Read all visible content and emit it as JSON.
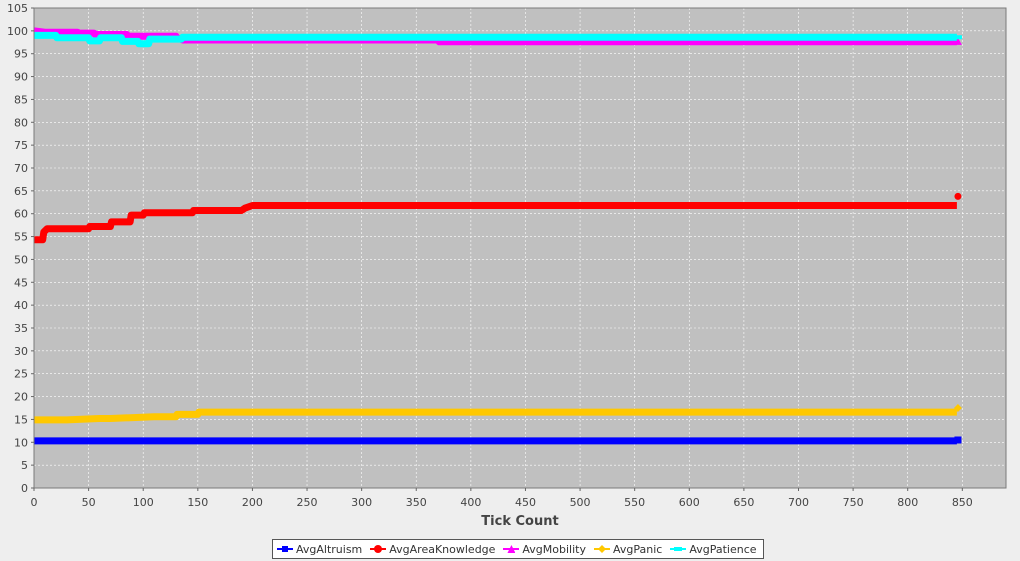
{
  "chart_data": {
    "type": "line",
    "xlabel": "Tick Count",
    "ylabel": "",
    "xlim": [
      0,
      890
    ],
    "ylim": [
      0,
      105
    ],
    "xticks": [
      0,
      50,
      100,
      150,
      200,
      250,
      300,
      350,
      400,
      450,
      500,
      550,
      600,
      650,
      700,
      750,
      800,
      850
    ],
    "yticks": [
      0,
      5,
      10,
      15,
      20,
      25,
      30,
      35,
      40,
      45,
      50,
      55,
      60,
      65,
      70,
      75,
      80,
      85,
      90,
      95,
      100,
      105
    ],
    "grid": true,
    "legend_position": "bottom",
    "background_color": "#c0c0c0",
    "series": [
      {
        "name": "AvgAltruism",
        "color": "#0000ff",
        "marker": "square",
        "x": [
          0,
          845
        ],
        "y": [
          10.3,
          10.3
        ],
        "end_point": [
          846,
          10.5
        ]
      },
      {
        "name": "AvgAreaKnowledge",
        "color": "#ff0000",
        "marker": "circle",
        "x": [
          0,
          8,
          9,
          12,
          50,
          51,
          70,
          71,
          88,
          89,
          100,
          101,
          145,
          146,
          190,
          193,
          200,
          845
        ],
        "y": [
          54.3,
          54.3,
          56,
          56.7,
          56.7,
          57.2,
          57.2,
          58.2,
          58.2,
          59.7,
          59.7,
          60.2,
          60.2,
          60.7,
          60.7,
          61.2,
          61.8,
          61.8
        ],
        "end_point": [
          846,
          63.8
        ]
      },
      {
        "name": "AvgMobility",
        "color": "#ff00ff",
        "marker": "triangle",
        "x": [
          0,
          10,
          40,
          41,
          55,
          56,
          85,
          86,
          130,
          131,
          135,
          136,
          370,
          371,
          845
        ],
        "y": [
          100,
          99.7,
          99.7,
          99.5,
          99.5,
          99.2,
          99.2,
          98.8,
          98.8,
          98.3,
          98.3,
          98,
          98,
          97.6,
          97.6
        ],
        "end_point": [
          846,
          97.6
        ]
      },
      {
        "name": "AvgPanic",
        "color": "#ffc800",
        "marker": "diamond",
        "x": [
          0,
          30,
          60,
          70,
          110,
          130,
          131,
          150,
          151,
          845
        ],
        "y": [
          14.9,
          14.9,
          15.2,
          15.2,
          15.6,
          15.6,
          16.1,
          16.1,
          16.6,
          16.6
        ],
        "end_point": [
          846,
          17.5
        ]
      },
      {
        "name": "AvgPatience",
        "color": "#00ffff",
        "marker": "dash",
        "x": [
          0,
          20,
          21,
          50,
          51,
          60,
          61,
          80,
          81,
          95,
          96,
          105,
          106,
          135,
          136,
          845
        ],
        "y": [
          99,
          99,
          98.5,
          98.5,
          97.8,
          97.8,
          98.5,
          98.5,
          97.7,
          97.7,
          97.2,
          97.2,
          98.2,
          98.2,
          98.6,
          98.6
        ],
        "end_point": [
          846,
          98.6
        ]
      }
    ]
  }
}
